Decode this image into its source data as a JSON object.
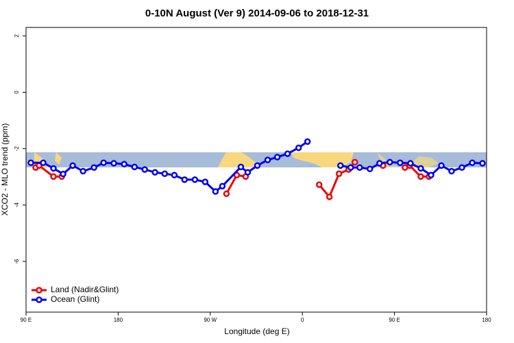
{
  "chart_data": {
    "type": "line",
    "title": "0-10N August (Ver 9)   2014-09-06 to 2018-12-31",
    "x_label": "Longitude (deg E)",
    "y_label": "XCO2 - MLO trend (ppm)",
    "xlim": [
      90,
      540
    ],
    "ylim": [
      -7.8,
      2.3
    ],
    "xticks": [
      {
        "value": 90,
        "label": "90 E"
      },
      {
        "value": 180,
        "label": "180"
      },
      {
        "value": 270,
        "label": "90 W"
      },
      {
        "value": 360,
        "label": "0"
      },
      {
        "value": 450,
        "label": "90 E"
      },
      {
        "value": 540,
        "label": "180"
      }
    ],
    "yticks": [
      2,
      0,
      -2,
      -4,
      -6
    ],
    "legend": "bottom-left",
    "series": [
      {
        "name": "Land (Nadir&Glint)",
        "color": "#ee0000",
        "x": [
          99.4,
          102.7,
          116.8,
          124.9,
          null,
          285.8,
          295.9,
          304.6,
          null,
          376.4,
          386.4,
          395.8,
          405.2,
          411.3,
          null,
          438.8,
          null,
          460.2,
          464.8,
          475.7,
          483.7
        ],
        "values": [
          -2.67,
          -2.6,
          -2.99,
          -2.99,
          null,
          -3.6,
          -2.94,
          -2.99,
          null,
          -3.28,
          -3.71,
          -2.89,
          -2.74,
          -2.48,
          null,
          -2.6,
          null,
          -2.67,
          -2.6,
          -2.99,
          -2.99
        ]
      },
      {
        "name": "Ocean (Glint)",
        "color": "#0000ee",
        "x": [
          94.7,
          106.8,
          116.8,
          126.2,
          135.6,
          145.7,
          156.4,
          165.8,
          175.8,
          185.9,
          196,
          206,
          216,
          225.5,
          234.9,
          244.9,
          255,
          265,
          275.1,
          281.8,
          299.9,
          306.6,
          316,
          326.1,
          335.5,
          345.5,
          356.3,
          365,
          null,
          397.2,
          407.2,
          416,
          426,
          435.4,
          445.5,
          455.5,
          465.6,
          475.7,
          485.7,
          495.8,
          505.8,
          515.9,
          526,
          536
        ],
        "values": [
          -2.5,
          -2.5,
          -2.7,
          -2.9,
          -2.6,
          -2.8,
          -2.67,
          -2.5,
          -2.52,
          -2.55,
          -2.65,
          -2.74,
          -2.84,
          -2.89,
          -2.94,
          -3.1,
          -3.1,
          -3.18,
          -3.52,
          -3.33,
          -2.65,
          -2.84,
          -2.6,
          -2.4,
          -2.3,
          -2.18,
          -1.97,
          -1.75,
          null,
          -2.6,
          -2.67,
          -2.67,
          -2.72,
          -2.52,
          -2.48,
          -2.5,
          -2.52,
          -2.7,
          -2.94,
          -2.6,
          -2.8,
          -2.67,
          -2.5,
          -2.52
        ]
      }
    ]
  }
}
